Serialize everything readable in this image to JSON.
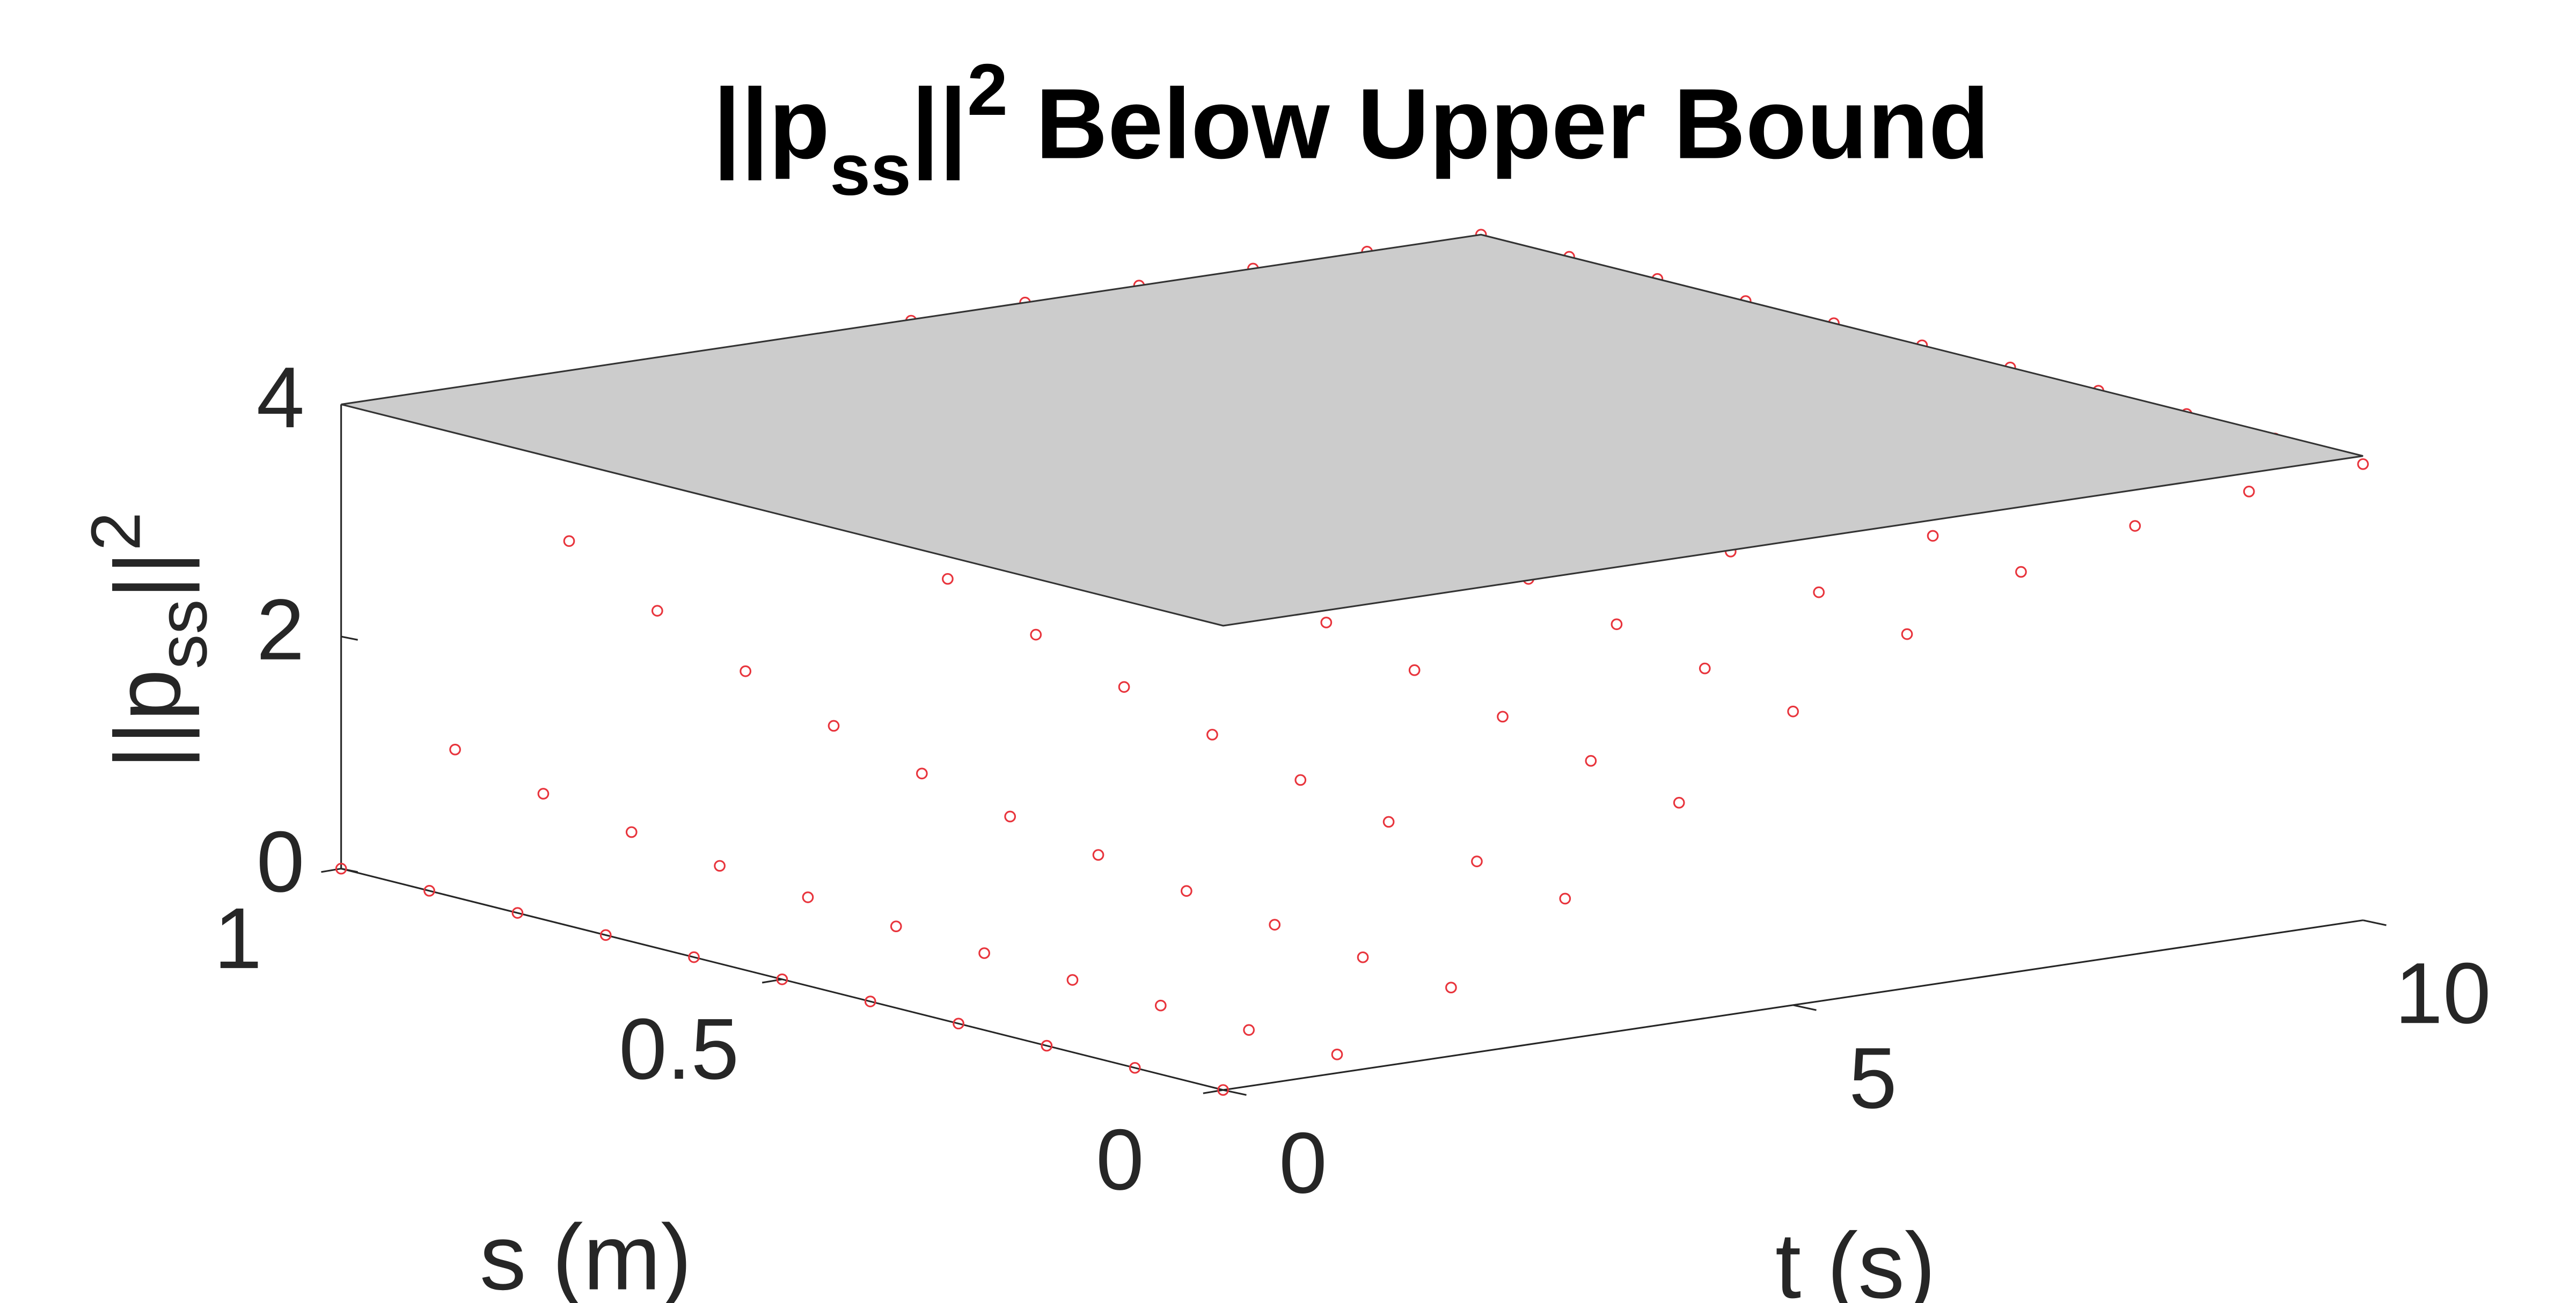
{
  "chart_data": {
    "type": "scatter3d",
    "title": {
      "parts": [
        "||p",
        "ss",
        "||",
        "2",
        " Below Upper Bound"
      ]
    },
    "xlabel": "t (s)",
    "ylabel": "s (m)",
    "zlabel": {
      "parts": [
        "||p",
        "ss",
        "||",
        "2"
      ]
    },
    "x": [
      0,
      1,
      2,
      3,
      4,
      5,
      6,
      7,
      8,
      9,
      10
    ],
    "y": [
      0,
      0.1,
      0.2,
      0.3,
      0.4,
      0.5,
      0.6,
      0.7,
      0.8,
      0.9,
      1
    ],
    "z": [
      [
        0,
        0.16,
        0.59,
        1.21,
        1.89,
        2.53,
        3.05,
        3.44,
        3.69,
        3.84,
        3.93
      ],
      [
        0,
        0.18,
        0.66,
        1.34,
        2.06,
        2.71,
        3.22,
        3.56,
        3.78,
        3.9,
        3.96
      ],
      [
        0,
        0.2,
        0.75,
        1.49,
        2.25,
        2.9,
        3.38,
        3.68,
        3.85,
        3.94,
        3.98
      ],
      [
        0,
        0.23,
        0.85,
        1.66,
        2.46,
        3.1,
        3.53,
        3.78,
        3.91,
        3.97,
        3.99
      ],
      [
        0,
        0.27,
        0.97,
        1.86,
        2.68,
        3.29,
        3.67,
        3.87,
        3.95,
        3.99,
        4.0
      ],
      [
        0,
        0.31,
        1.11,
        2.08,
        2.92,
        3.48,
        3.79,
        3.93,
        3.98,
        3.99,
        4.0
      ],
      [
        0,
        0.37,
        1.29,
        2.34,
        3.16,
        3.65,
        3.88,
        3.97,
        3.99,
        4.0,
        4.0
      ],
      [
        0,
        0.45,
        1.51,
        2.63,
        3.4,
        3.8,
        3.94,
        3.99,
        4.0,
        4.0,
        4.0
      ],
      [
        0,
        0.55,
        1.79,
        2.94,
        3.62,
        3.9,
        3.98,
        4.0,
        4.0,
        4.0,
        4.0
      ],
      [
        0,
        0.69,
        2.12,
        3.27,
        3.81,
        3.96,
        4.0,
        4.0,
        4.0,
        4.0,
        4.0
      ],
      [
        0,
        0.88,
        2.53,
        3.58,
        3.93,
        3.99,
        4.0,
        4.0,
        4.0,
        4.0,
        4.0
      ]
    ],
    "marker_color": "#e8343c",
    "bound": 4,
    "bound_color": "#cccccc",
    "xlim": [
      0,
      10
    ],
    "ylim": [
      0,
      1
    ],
    "zlim": [
      0,
      4
    ],
    "xticks": [
      0,
      5,
      10
    ],
    "yticks": [
      0,
      0.5,
      1
    ],
    "zticks": [
      0,
      2,
      4
    ]
  }
}
